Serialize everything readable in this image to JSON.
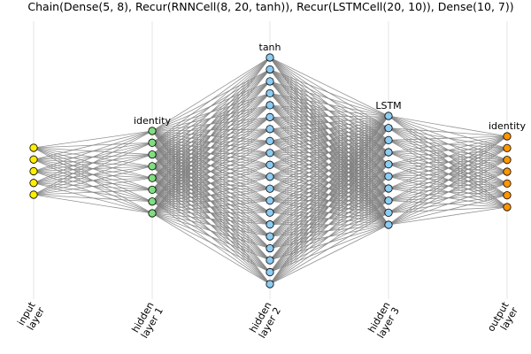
{
  "title": "Chain(Dense(5, 8), Recur(RNNCell(8, 20, tanh)), Recur(LSTMCell(20, 10)), Dense(10, 7))",
  "layers": [
    {
      "label_line1": "input",
      "label_line2": "layer",
      "size": 5,
      "activation": "",
      "color": "#ffee00"
    },
    {
      "label_line1": "hidden",
      "label_line2": "layer 1",
      "size": 8,
      "activation": "identity",
      "color": "#80dd80"
    },
    {
      "label_line1": "hidden",
      "label_line2": "layer 2",
      "size": 20,
      "activation": "tanh",
      "color": "#8ccbf2"
    },
    {
      "label_line1": "hidden",
      "label_line2": "layer 3",
      "size": 10,
      "activation": "LSTM",
      "color": "#8ccbf2"
    },
    {
      "label_line1": "output",
      "label_line2": "layer",
      "size": 7,
      "activation": "identity",
      "color": "#ff9500"
    }
  ],
  "edge_color": "#808080",
  "node_stroke": "#000000",
  "grid": true
}
